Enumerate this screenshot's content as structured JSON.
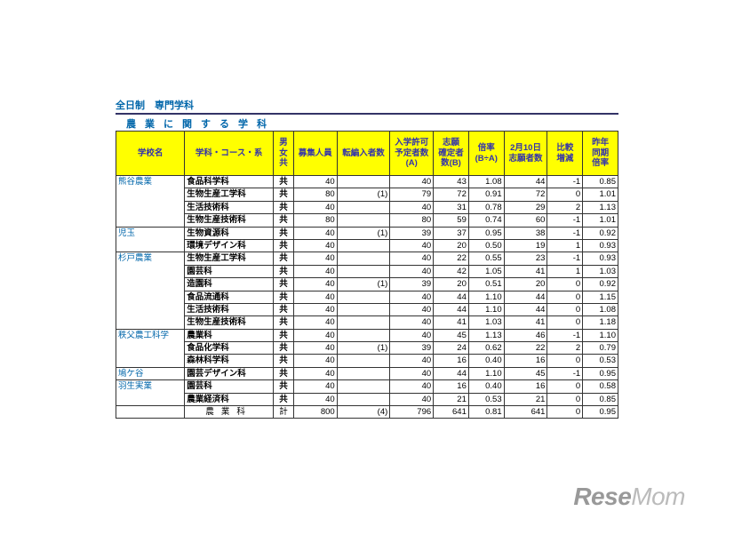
{
  "title": "全日制　専門学科",
  "subtitle": "農業に関する学科",
  "headers": {
    "school": "学校名",
    "course": "学科・コース・系",
    "gender": "男\n女\n共",
    "boshuu": "募集人員",
    "tenhen": "転編入者数",
    "nyugaku": "入学許可\n予定者数\n(A)",
    "shigan": "志願\n確定者\n数(B)",
    "bairitsu": "倍率\n(B÷A)",
    "feb10": "2月10日\n志願者数",
    "hikaku": "比較\n増減",
    "sakunen": "昨年\n同期\n倍率"
  },
  "schools": [
    {
      "name": "熊谷農業",
      "rows": [
        {
          "course": "食品科学科",
          "g": "共",
          "boshuu": "40",
          "ten": "",
          "A": "40",
          "B": "43",
          "rate": "1.08",
          "feb": "44",
          "diff": "-1",
          "last": "0.85"
        },
        {
          "course": "生物生産工学科",
          "g": "共",
          "boshuu": "80",
          "ten": "(1)",
          "A": "79",
          "B": "72",
          "rate": "0.91",
          "feb": "72",
          "diff": "0",
          "last": "1.01"
        },
        {
          "course": "生活技術科",
          "g": "共",
          "boshuu": "40",
          "ten": "",
          "A": "40",
          "B": "31",
          "rate": "0.78",
          "feb": "29",
          "diff": "2",
          "last": "1.13"
        },
        {
          "course": "生物生産技術科",
          "g": "共",
          "boshuu": "80",
          "ten": "",
          "A": "80",
          "B": "59",
          "rate": "0.74",
          "feb": "60",
          "diff": "-1",
          "last": "1.01"
        }
      ]
    },
    {
      "name": "児玉",
      "rows": [
        {
          "course": "生物資源科",
          "g": "共",
          "boshuu": "40",
          "ten": "(1)",
          "A": "39",
          "B": "37",
          "rate": "0.95",
          "feb": "38",
          "diff": "-1",
          "last": "0.92"
        },
        {
          "course": "環境デザイン科",
          "g": "共",
          "boshuu": "40",
          "ten": "",
          "A": "40",
          "B": "20",
          "rate": "0.50",
          "feb": "19",
          "diff": "1",
          "last": "0.93"
        }
      ]
    },
    {
      "name": "杉戸農業",
      "rows": [
        {
          "course": "生物生産工学科",
          "g": "共",
          "boshuu": "40",
          "ten": "",
          "A": "40",
          "B": "22",
          "rate": "0.55",
          "feb": "23",
          "diff": "-1",
          "last": "0.93"
        },
        {
          "course": "園芸科",
          "g": "共",
          "boshuu": "40",
          "ten": "",
          "A": "40",
          "B": "42",
          "rate": "1.05",
          "feb": "41",
          "diff": "1",
          "last": "1.03"
        },
        {
          "course": "造園科",
          "g": "共",
          "boshuu": "40",
          "ten": "(1)",
          "A": "39",
          "B": "20",
          "rate": "0.51",
          "feb": "20",
          "diff": "0",
          "last": "0.92"
        },
        {
          "course": "食品流通科",
          "g": "共",
          "boshuu": "40",
          "ten": "",
          "A": "40",
          "B": "44",
          "rate": "1.10",
          "feb": "44",
          "diff": "0",
          "last": "1.15"
        },
        {
          "course": "生活技術科",
          "g": "共",
          "boshuu": "40",
          "ten": "",
          "A": "40",
          "B": "44",
          "rate": "1.10",
          "feb": "44",
          "diff": "0",
          "last": "1.08"
        },
        {
          "course": "生物生産技術科",
          "g": "共",
          "boshuu": "40",
          "ten": "",
          "A": "40",
          "B": "41",
          "rate": "1.03",
          "feb": "41",
          "diff": "0",
          "last": "1.18"
        }
      ]
    },
    {
      "name": "秩父農工科学",
      "rows": [
        {
          "course": "農業科",
          "g": "共",
          "boshuu": "40",
          "ten": "",
          "A": "40",
          "B": "45",
          "rate": "1.13",
          "feb": "46",
          "diff": "-1",
          "last": "1.10"
        },
        {
          "course": "食品化学科",
          "g": "共",
          "boshuu": "40",
          "ten": "(1)",
          "A": "39",
          "B": "24",
          "rate": "0.62",
          "feb": "22",
          "diff": "2",
          "last": "0.79"
        },
        {
          "course": "森林科学科",
          "g": "共",
          "boshuu": "40",
          "ten": "",
          "A": "40",
          "B": "16",
          "rate": "0.40",
          "feb": "16",
          "diff": "0",
          "last": "0.53"
        }
      ]
    },
    {
      "name": "鳩ケ谷",
      "rows": [
        {
          "course": "園芸デザイン科",
          "g": "共",
          "boshuu": "40",
          "ten": "",
          "A": "40",
          "B": "44",
          "rate": "1.10",
          "feb": "45",
          "diff": "-1",
          "last": "0.95"
        }
      ]
    },
    {
      "name": "羽生実業",
      "rows": [
        {
          "course": "園芸科",
          "g": "共",
          "boshuu": "40",
          "ten": "",
          "A": "40",
          "B": "16",
          "rate": "0.40",
          "feb": "16",
          "diff": "0",
          "last": "0.58"
        },
        {
          "course": "農業経済科",
          "g": "共",
          "boshuu": "40",
          "ten": "",
          "A": "40",
          "B": "21",
          "rate": "0.53",
          "feb": "21",
          "diff": "0",
          "last": "0.85"
        }
      ]
    }
  ],
  "total": {
    "label": "農業科",
    "g": "計",
    "boshuu": "800",
    "ten": "(4)",
    "A": "796",
    "B": "641",
    "rate": "0.81",
    "feb": "641",
    "diff": "0",
    "last": "0.95"
  },
  "logo_a": "Rese",
  "logo_b": "Mom"
}
